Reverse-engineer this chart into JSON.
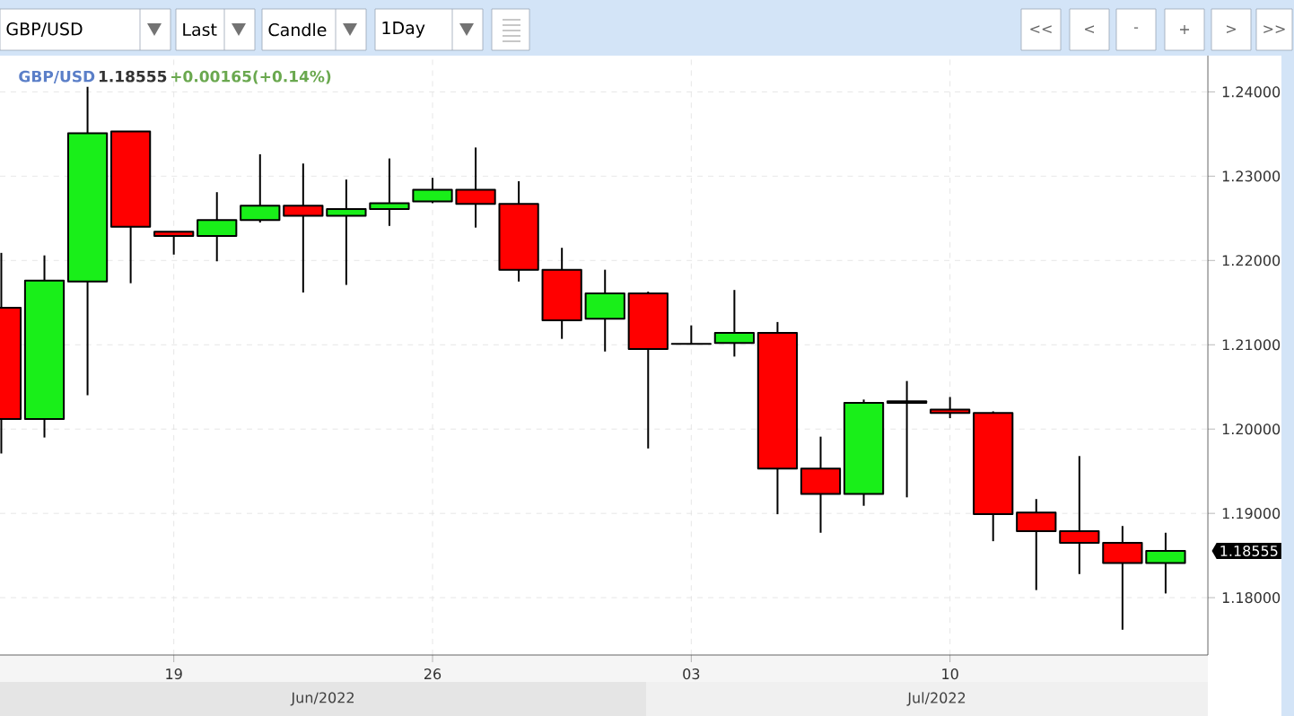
{
  "chart_data": {
    "type": "candlestick",
    "title": "GBP/USD",
    "subtitle": "1.18555",
    "categories": [
      null,
      null,
      null,
      null,
      "19",
      null,
      null,
      null,
      null,
      null,
      "26",
      null,
      null,
      null,
      null,
      null,
      "03",
      null,
      null,
      null,
      null,
      null,
      "10",
      null,
      null,
      null,
      null,
      null
    ],
    "ohlc": [
      [
        1.2144,
        1.2209,
        1.1971,
        1.2012
      ],
      [
        1.2012,
        1.2206,
        1.199,
        1.2176
      ],
      [
        1.2175,
        1.2406,
        1.204,
        1.2351
      ],
      [
        1.2353,
        1.2353,
        1.2173,
        1.224
      ],
      [
        1.2234,
        1.2234,
        1.2207,
        1.2229
      ],
      [
        1.2229,
        1.2281,
        1.2199,
        1.2248
      ],
      [
        1.2248,
        1.2326,
        1.2245,
        1.2265
      ],
      [
        1.2265,
        1.2315,
        1.2162,
        1.2253
      ],
      [
        1.2253,
        1.2296,
        1.2171,
        1.2261
      ],
      [
        1.2261,
        1.2321,
        1.2241,
        1.2268
      ],
      [
        1.227,
        1.2298,
        1.2268,
        1.2284
      ],
      [
        1.2284,
        1.2334,
        1.2239,
        1.2267
      ],
      [
        1.2267,
        1.2294,
        1.2175,
        1.2189
      ],
      [
        1.2189,
        1.2215,
        1.2107,
        1.2129
      ],
      [
        1.2131,
        1.2189,
        1.2092,
        1.2161
      ],
      [
        1.2161,
        1.2163,
        1.1977,
        1.2095
      ],
      [
        1.2101,
        1.2123,
        1.2101,
        1.2101
      ],
      [
        1.2102,
        1.2165,
        1.2086,
        1.2114
      ],
      [
        1.2114,
        1.2127,
        1.1899,
        1.1953
      ],
      [
        1.1953,
        1.1991,
        1.1877,
        1.1923
      ],
      [
        1.1923,
        1.2035,
        1.1909,
        1.2031
      ],
      [
        1.2031,
        1.2057,
        1.1919,
        1.2033
      ],
      [
        1.2023,
        1.2038,
        1.2013,
        1.2019
      ],
      [
        1.2019,
        1.2021,
        1.1867,
        1.1899
      ],
      [
        1.1901,
        1.1917,
        1.1809,
        1.1879
      ],
      [
        1.1879,
        1.1968,
        1.1828,
        1.1865
      ],
      [
        1.1865,
        1.1885,
        1.1762,
        1.1841
      ],
      [
        1.1841,
        1.1877,
        1.1805,
        1.18555
      ]
    ],
    "colors": [
      "#ff0000",
      "#19ef19",
      "#19ef19",
      "#ff0000",
      "#ff0000",
      "#19ef19",
      "#19ef19",
      "#ff0000",
      "#19ef19",
      "#19ef19",
      "#19ef19",
      "#ff0000",
      "#ff0000",
      "#ff0000",
      "#19ef19",
      "#ff0000",
      "#000000",
      "#19ef19",
      "#ff0000",
      "#ff0000",
      "#19ef19",
      "#000000",
      "#ff0000",
      "#ff0000",
      "#ff0000",
      "#ff0000",
      "#ff0000",
      "#19ef19"
    ],
    "ylim": [
      1.1732,
      1.2443
    ],
    "yticks": [
      {
        "value": 1.18,
        "label": "1.18000"
      },
      {
        "value": 1.19,
        "label": "1.19000"
      },
      {
        "value": 1.2,
        "label": "1.20000"
      },
      {
        "value": 1.21,
        "label": "1.21000"
      },
      {
        "value": 1.22,
        "label": "1.22000"
      },
      {
        "value": 1.23,
        "label": "1.23000"
      },
      {
        "value": 1.24,
        "label": "1.24000"
      }
    ],
    "grid": true,
    "annotations": [
      "GBP/USD",
      "Last",
      "Candle",
      "1Day",
      "<<",
      "<",
      "-",
      "+",
      ">",
      ">>",
      "+0.00165(+0.14%)",
      "Jun/2022",
      "Jul/2022",
      "1.18555"
    ]
  }
}
